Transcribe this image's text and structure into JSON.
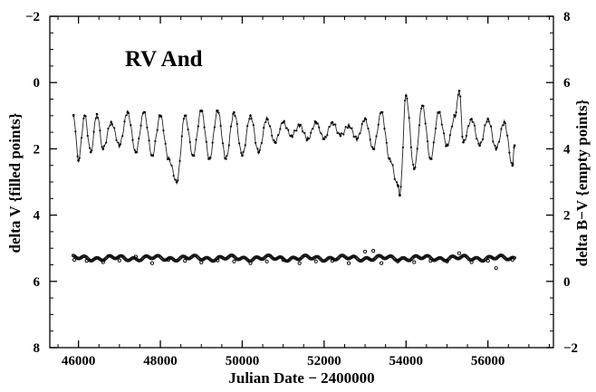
{
  "chart_data": {
    "type": "scatter",
    "title": "RV And",
    "xlabel": "Julian Date − 2400000",
    "ylabel_left": "delta V  {filled points}",
    "ylabel_right": "delta B−V {empty points}",
    "xlim": [
      45300,
      57600
    ],
    "ylim_left": [
      8,
      -2
    ],
    "ylim_right": [
      -2,
      8
    ],
    "x_ticks": [
      "46000",
      "48000",
      "50000",
      "52000",
      "54000",
      "56000"
    ],
    "y_left_ticks": [
      "−2",
      "0",
      "2",
      "4",
      "6",
      "8"
    ],
    "y_right_ticks": [
      "−2",
      "0",
      "2",
      "4",
      "6",
      "8"
    ],
    "grid": false,
    "series": [
      {
        "name": "delta V",
        "marker": "filled",
        "x_range": [
          45870,
          56650
        ],
        "points": [
          [
            45880,
            1.0
          ],
          [
            46000,
            2.35
          ],
          [
            46150,
            1.0
          ],
          [
            46300,
            2.1
          ],
          [
            46450,
            0.95
          ],
          [
            46600,
            2.0
          ],
          [
            46800,
            1.2
          ],
          [
            47000,
            1.9
          ],
          [
            47200,
            0.9
          ],
          [
            47400,
            2.1
          ],
          [
            47600,
            0.9
          ],
          [
            47800,
            2.2
          ],
          [
            48000,
            1.0
          ],
          [
            48200,
            2.3
          ],
          [
            48400,
            3.0
          ],
          [
            48600,
            1.0
          ],
          [
            48800,
            2.2
          ],
          [
            49000,
            0.85
          ],
          [
            49200,
            2.3
          ],
          [
            49400,
            0.85
          ],
          [
            49600,
            2.3
          ],
          [
            49800,
            0.9
          ],
          [
            50000,
            2.2
          ],
          [
            50200,
            1.0
          ],
          [
            50400,
            2.1
          ],
          [
            50600,
            1.1
          ],
          [
            50800,
            1.8
          ],
          [
            51000,
            1.2
          ],
          [
            51200,
            1.6
          ],
          [
            51400,
            1.3
          ],
          [
            51600,
            1.7
          ],
          [
            51800,
            1.2
          ],
          [
            52000,
            1.7
          ],
          [
            52200,
            1.2
          ],
          [
            52400,
            1.6
          ],
          [
            52600,
            1.3
          ],
          [
            52800,
            1.7
          ],
          [
            53000,
            1.1
          ],
          [
            53200,
            2.0
          ],
          [
            53400,
            0.9
          ],
          [
            53600,
            2.3
          ],
          [
            53800,
            3.1
          ],
          [
            53850,
            3.4
          ],
          [
            54000,
            0.4
          ],
          [
            54200,
            2.6
          ],
          [
            54400,
            0.7
          ],
          [
            54600,
            2.3
          ],
          [
            54800,
            0.9
          ],
          [
            55000,
            1.9
          ],
          [
            55200,
            1.0
          ],
          [
            55300,
            0.25
          ],
          [
            55400,
            1.8
          ],
          [
            55600,
            1.1
          ],
          [
            55800,
            1.9
          ],
          [
            56000,
            1.1
          ],
          [
            56200,
            2.0
          ],
          [
            56400,
            1.2
          ],
          [
            56600,
            2.5
          ],
          [
            56650,
            1.9
          ]
        ]
      },
      {
        "name": "delta B−V",
        "marker": "empty",
        "x_range": [
          45870,
          56650
        ],
        "mean": 0.7,
        "points": [
          [
            45900,
            0.65
          ],
          [
            46200,
            0.62
          ],
          [
            46600,
            0.58
          ],
          [
            47000,
            0.63
          ],
          [
            47400,
            0.75
          ],
          [
            47800,
            0.55
          ],
          [
            48200,
            0.65
          ],
          [
            48600,
            0.62
          ],
          [
            49000,
            0.57
          ],
          [
            49400,
            0.63
          ],
          [
            49800,
            0.6
          ],
          [
            50200,
            0.55
          ],
          [
            50600,
            0.6
          ],
          [
            51000,
            0.65
          ],
          [
            51400,
            0.55
          ],
          [
            51800,
            0.6
          ],
          [
            52200,
            0.62
          ],
          [
            52600,
            0.55
          ],
          [
            53000,
            0.9
          ],
          [
            53200,
            0.92
          ],
          [
            53400,
            0.55
          ],
          [
            53800,
            0.6
          ],
          [
            54200,
            0.58
          ],
          [
            54600,
            0.62
          ],
          [
            55000,
            0.6
          ],
          [
            55300,
            0.85
          ],
          [
            55600,
            0.58
          ],
          [
            56000,
            0.62
          ],
          [
            56200,
            0.4
          ],
          [
            56600,
            0.65
          ]
        ]
      }
    ]
  }
}
